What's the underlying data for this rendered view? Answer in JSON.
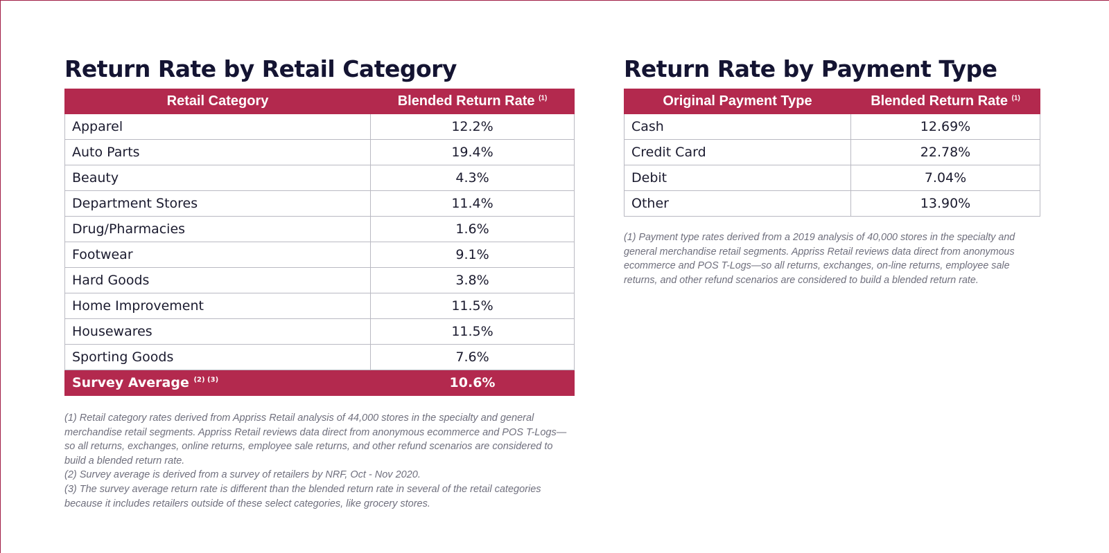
{
  "left": {
    "title": "Return Rate by Retail Category",
    "headers": [
      "Retail Category",
      "Blended Return Rate",
      "(1)"
    ],
    "rows": [
      {
        "label": "Apparel",
        "value": "12.2%"
      },
      {
        "label": "Auto Parts",
        "value": "19.4%"
      },
      {
        "label": "Beauty",
        "value": "4.3%"
      },
      {
        "label": "Department Stores",
        "value": "11.4%"
      },
      {
        "label": "Drug/Pharmacies",
        "value": "1.6%"
      },
      {
        "label": "Footwear",
        "value": "9.1%"
      },
      {
        "label": "Hard Goods",
        "value": "3.8%"
      },
      {
        "label": "Home Improvement",
        "value": "11.5%"
      },
      {
        "label": "Housewares",
        "value": "11.5%"
      },
      {
        "label": "Sporting Goods",
        "value": "7.6%"
      }
    ],
    "average": {
      "label": "Survey Average",
      "marks": "(2) (3)",
      "value": "10.6%"
    },
    "notes": [
      "(1) Retail category rates derived from Appriss Retail analysis of 44,000 stores in the specialty and general merchandise retail segments. Appriss Retail reviews data direct from anonymous ecommerce and POS T-Logs—so all returns, exchanges, online returns, employee sale returns, and other refund scenarios are considered to build a blended return rate.",
      "(2) Survey average is derived from a survey of retailers by NRF, Oct - Nov 2020.",
      "(3) The survey average return rate is different than the blended return rate in several of the retail categories because it includes retailers outside of these select categories, like grocery stores."
    ]
  },
  "right": {
    "title": "Return Rate by Payment Type",
    "headers": [
      "Original Payment Type",
      "Blended Return Rate",
      "(1)"
    ],
    "rows": [
      {
        "label": "Cash",
        "value": "12.69%"
      },
      {
        "label": "Credit Card",
        "value": "22.78%"
      },
      {
        "label": "Debit",
        "value": "7.04%"
      },
      {
        "label": "Other",
        "value": "13.90%"
      }
    ],
    "notes": [
      "(1) Payment type rates derived from a 2019 analysis of 40,000 stores in the specialty and general merchandise retail segments. Appriss Retail reviews data direct from anonymous ecommerce and POS T-Logs—so all returns, exchanges, on-line returns, employee sale returns, and other refund scenarios are considered to build a blended return rate."
    ]
  },
  "colors": {
    "accent": "#b3294e",
    "title": "#141432",
    "note": "#6f6f7d",
    "border": "#b9b9c2"
  }
}
